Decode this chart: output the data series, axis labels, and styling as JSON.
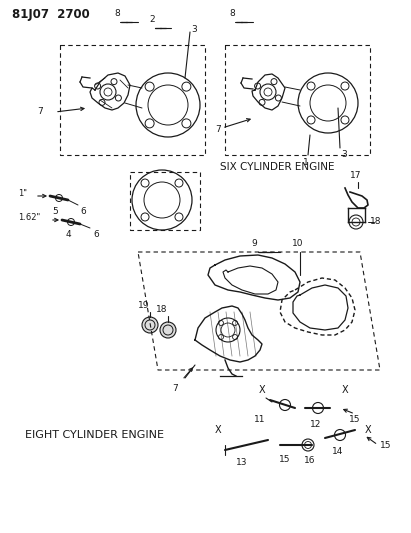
{
  "title": "81J07  2700",
  "bg_color": "#ffffff",
  "lc": "#1a1a1a",
  "six_cyl_label": "SIX CYLINDER ENGINE",
  "eight_cyl_label": "EIGHT CYLINDER ENGINE",
  "figsize": [
    4.11,
    5.33
  ],
  "dpi": 100
}
